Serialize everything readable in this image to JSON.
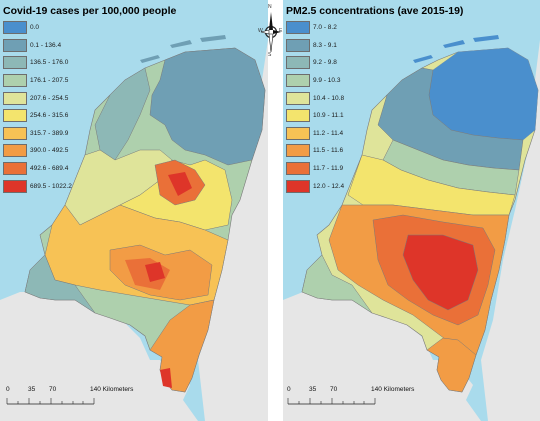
{
  "left": {
    "title": "Covid-19 cases per 100,000 people",
    "legend": [
      {
        "label": "0.0",
        "color": "#4a8fcd"
      },
      {
        "label": "0.1 - 136.4",
        "color": "#6f9fb4"
      },
      {
        "label": "136.5 - 176.0",
        "color": "#8db8b6"
      },
      {
        "label": "176.1 - 207.5",
        "color": "#aed0ad"
      },
      {
        "label": "207.6 - 254.5",
        "color": "#dfe49a"
      },
      {
        "label": "254.6 - 315.6",
        "color": "#f3e46d"
      },
      {
        "label": "315.7 - 389.9",
        "color": "#f7c255"
      },
      {
        "label": "390.0 - 492.5",
        "color": "#f29c45"
      },
      {
        "label": "492.6 - 689.4",
        "color": "#ea7038"
      },
      {
        "label": "689.5 - 1022.2",
        "color": "#de3529"
      }
    ],
    "scale": {
      "labels": [
        "0",
        "35",
        "70",
        "140 Kilometers"
      ]
    }
  },
  "right": {
    "title": "PM2.5 concentrations (ave 2015-19)",
    "legend": [
      {
        "label": "7.0 - 8.2",
        "color": "#4a8fcd"
      },
      {
        "label": "8.3 - 9.1",
        "color": "#6f9fb4"
      },
      {
        "label": "9.2 - 9.8",
        "color": "#8db8b6"
      },
      {
        "label": "9.9 - 10.3",
        "color": "#aed0ad"
      },
      {
        "label": "10.4 - 10.8",
        "color": "#dfe49a"
      },
      {
        "label": "10.9 - 11.1",
        "color": "#f3e46d"
      },
      {
        "label": "11.2 - 11.4",
        "color": "#f7c255"
      },
      {
        "label": "11.5 - 11.6",
        "color": "#f29c45"
      },
      {
        "label": "11.7 - 11.9",
        "color": "#ea7038"
      },
      {
        "label": "12.0 - 12.4",
        "color": "#de3529"
      }
    ],
    "scale": {
      "labels": [
        "0",
        "35",
        "70",
        "140 Kilometers"
      ]
    }
  },
  "north_arrow": {
    "n": "N",
    "s": "S",
    "e": "E",
    "w": "W"
  },
  "colors": {
    "sea": "#a9dbec",
    "land_outside": "#e6e6e6",
    "border": "#9a9a9a"
  }
}
